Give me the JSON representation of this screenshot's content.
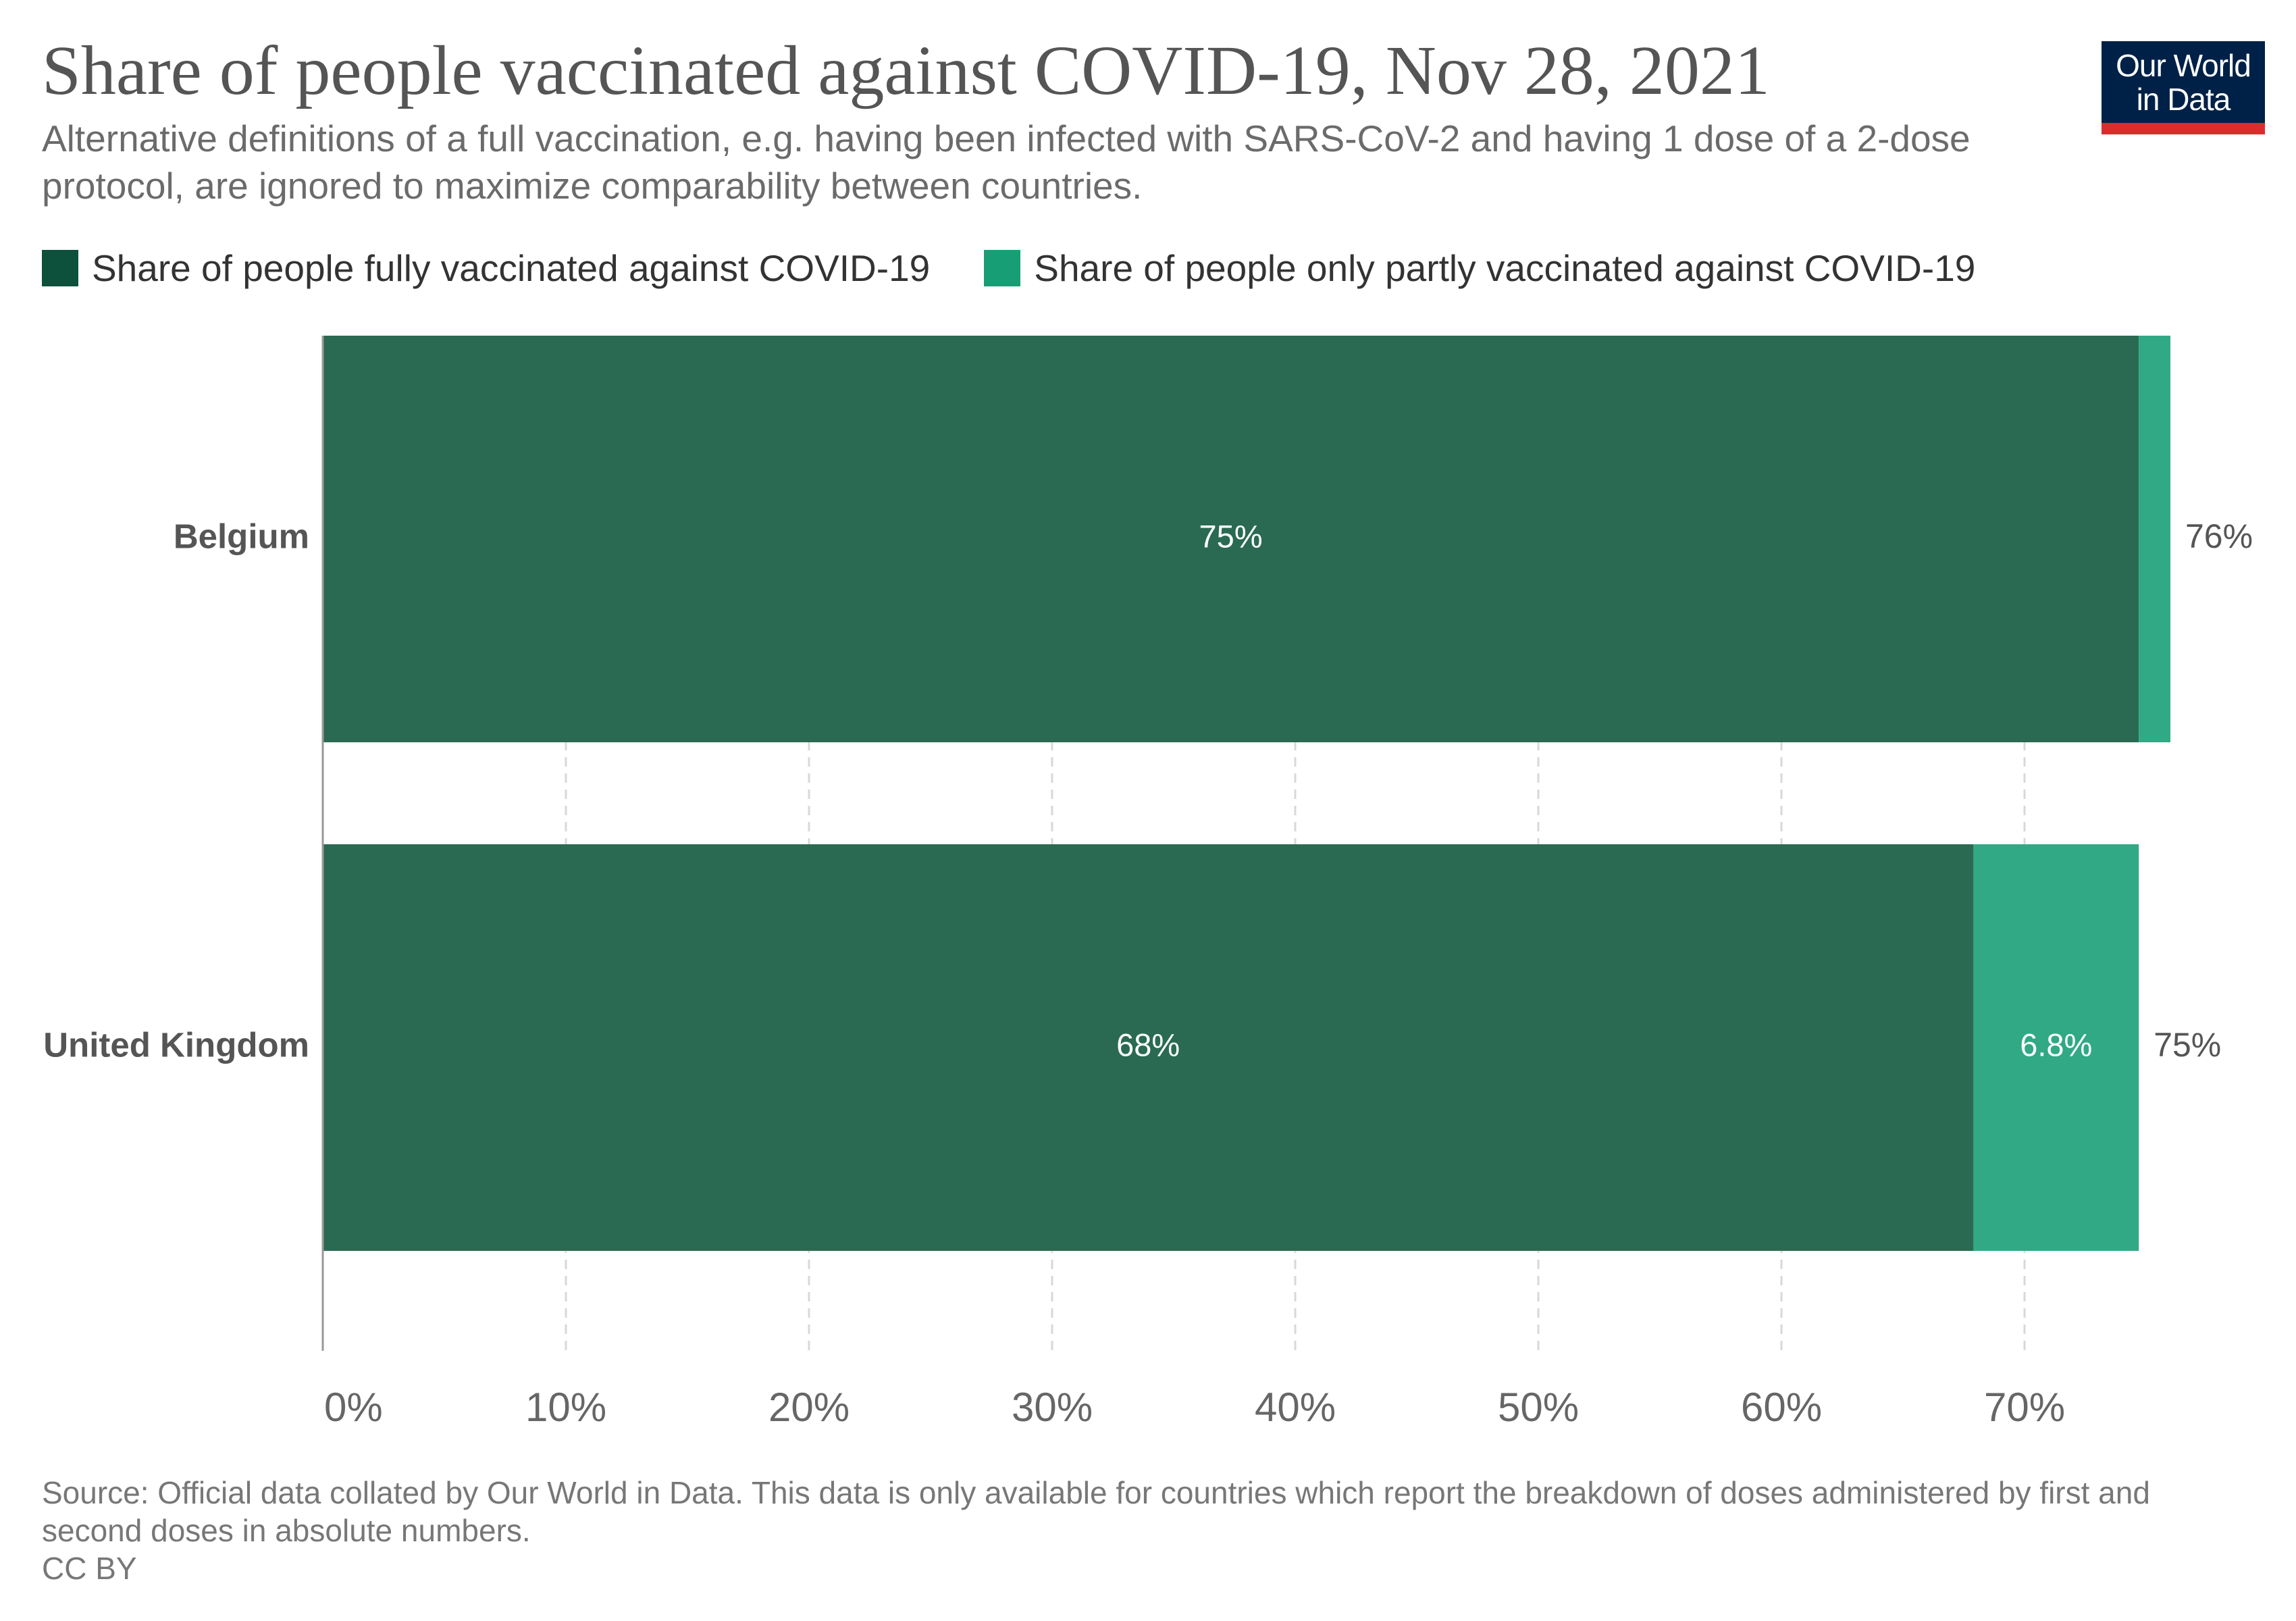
{
  "header": {
    "title": "Share of people vaccinated against COVID-19, Nov 28, 2021",
    "subtitle": "Alternative definitions of a full vaccination, e.g. having been infected with SARS-CoV-2 and having 1 dose of a 2-dose protocol, are ignored to maximize comparability between countries.",
    "logo_text": "Our World\nin Data"
  },
  "footer": {
    "source": "Source: Official data collated by Our World in Data. This data is only available for countries which report the breakdown of doses administered by first and second doses in absolute numbers.",
    "license": "CC BY"
  },
  "colors": {
    "fully": "#2a6a52",
    "partly": "#30a984",
    "legend_fully": "#0d503c",
    "legend_partly": "#189e74",
    "logo_bg": "#002147",
    "logo_bar": "#dc2d2d",
    "grid": "#d8d8d8",
    "axis": "#999999"
  },
  "chart_data": {
    "type": "bar",
    "orientation": "horizontal",
    "stacked": true,
    "categories": [
      "Belgium",
      "United Kingdom"
    ],
    "series": [
      {
        "name": "Share of people fully vaccinated against COVID-19",
        "values": [
          74.7,
          67.9
        ],
        "labels": [
          "75%",
          "68%"
        ]
      },
      {
        "name": "Share of people only partly vaccinated against COVID-19",
        "values": [
          1.3,
          6.8
        ],
        "labels": [
          "",
          "6.8%"
        ]
      }
    ],
    "totals": [
      "76%",
      "75%"
    ],
    "x_ticks": [
      0,
      10,
      20,
      30,
      40,
      50,
      60,
      70
    ],
    "x_tick_labels": [
      "0%",
      "10%",
      "20%",
      "30%",
      "40%",
      "50%",
      "60%",
      "70%"
    ],
    "xlim": [
      0,
      80
    ],
    "grid": "vertical dashed",
    "legend_position": "top-left"
  }
}
